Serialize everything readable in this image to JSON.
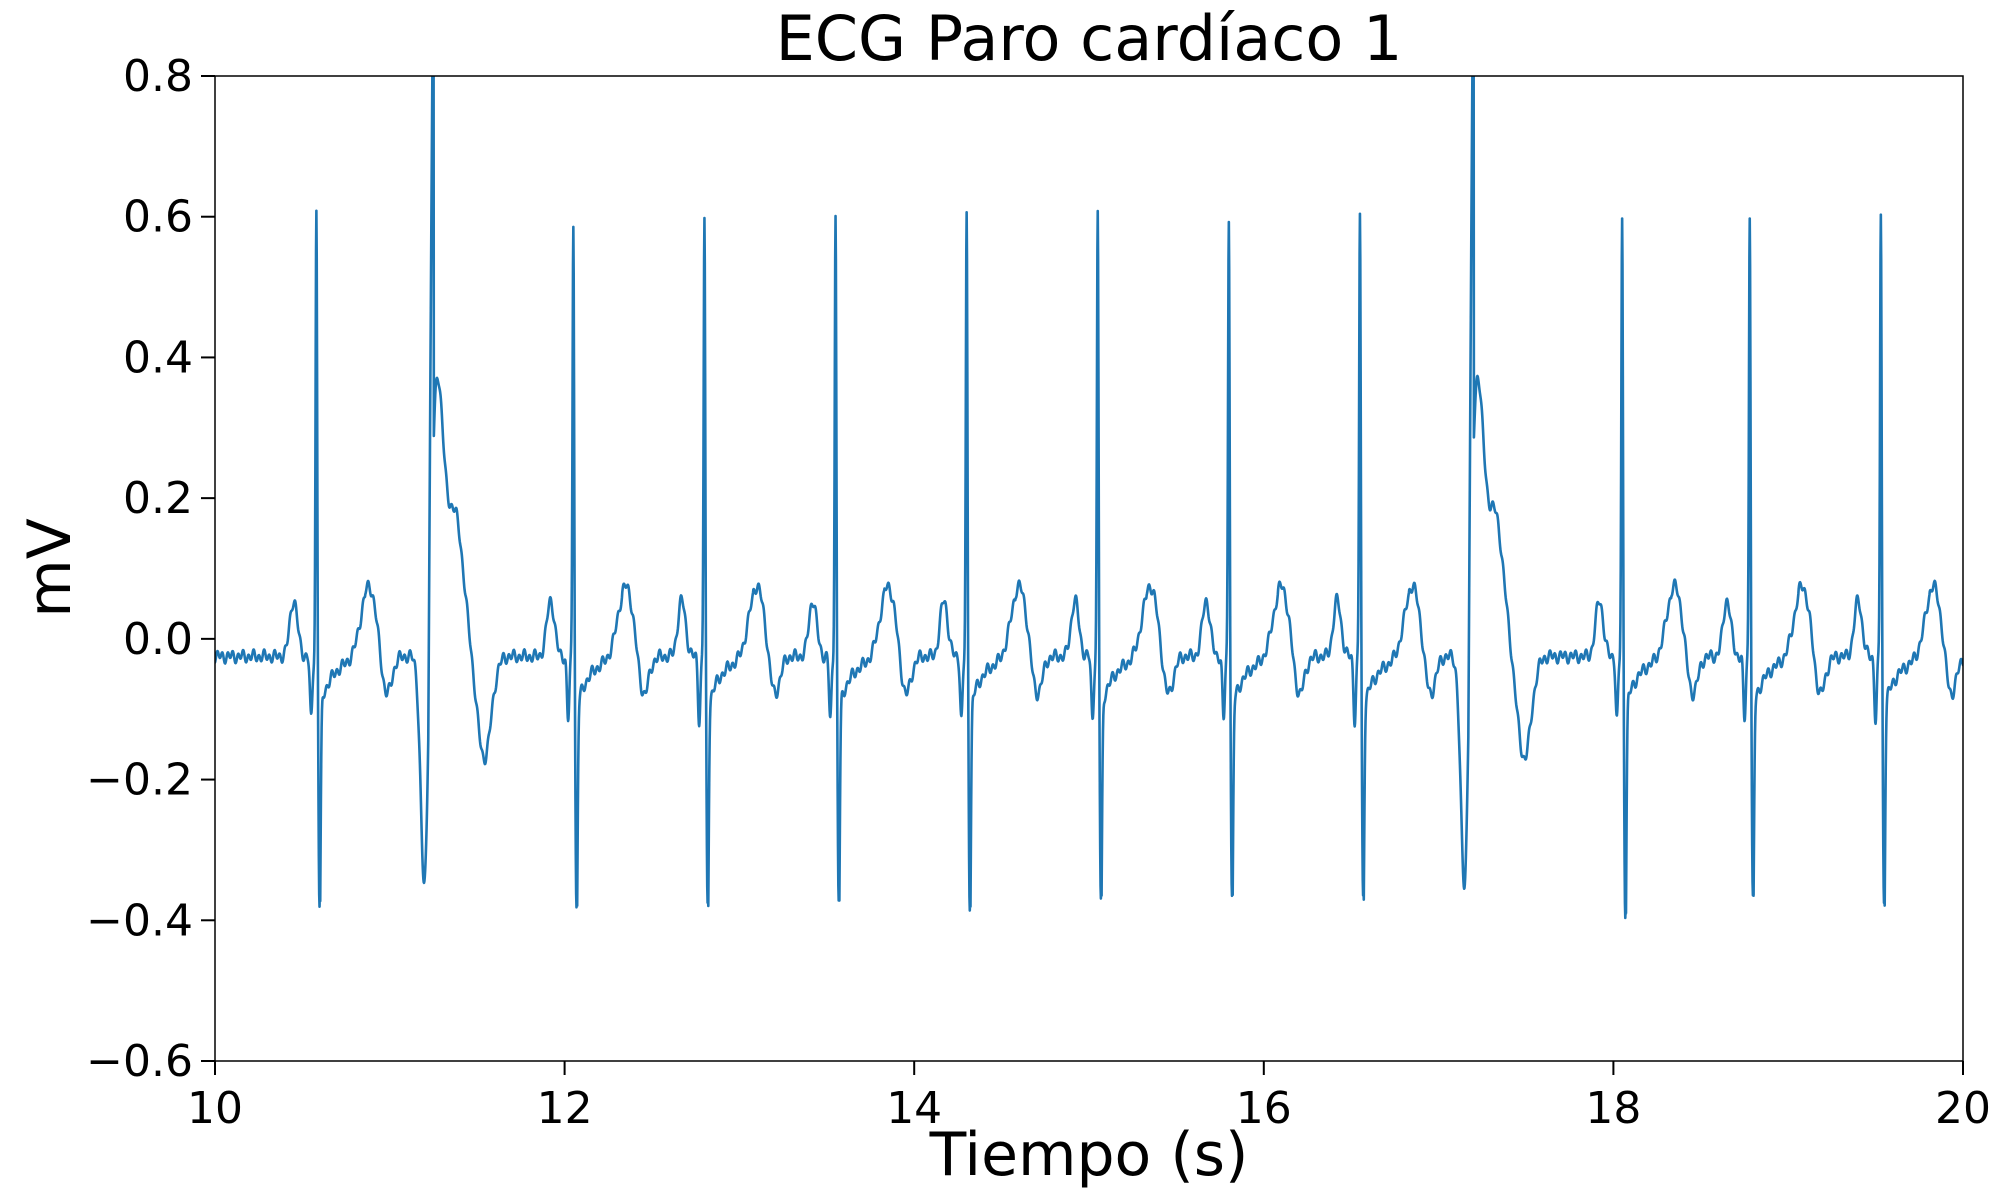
{
  "chart_data": {
    "type": "line",
    "title": "ECG Paro cardíaco 1",
    "xlabel": "Tiempo (s)",
    "ylabel": "mV",
    "xlim": [
      10,
      20
    ],
    "ylim": [
      -0.6,
      0.8
    ],
    "x_ticks": [
      10,
      12,
      14,
      16,
      18,
      20
    ],
    "y_ticks": [
      -0.6,
      -0.4,
      -0.2,
      0.0,
      0.2,
      0.4,
      0.6,
      0.8
    ],
    "x_tick_labels": [
      "10",
      "12",
      "14",
      "16",
      "18",
      "20"
    ],
    "y_tick_labels": [
      "−0.6",
      "−0.4",
      "−0.2",
      "0.0",
      "0.2",
      "0.4",
      "0.6",
      "0.8"
    ],
    "grid": false,
    "legend": "none",
    "line_color": "#1f77b4",
    "series": [
      {
        "normal_beats": [
          {
            "r": 10.58,
            "peak": 0.605,
            "s": -0.375
          },
          {
            "r": 12.05,
            "peak": 0.592,
            "s": -0.38
          },
          {
            "r": 12.8,
            "peak": 0.598,
            "s": -0.372
          },
          {
            "r": 13.55,
            "peak": 0.602,
            "s": -0.365
          },
          {
            "r": 14.3,
            "peak": 0.598,
            "s": -0.372
          },
          {
            "r": 15.05,
            "peak": 0.602,
            "s": -0.368
          },
          {
            "r": 15.8,
            "peak": 0.598,
            "s": -0.365
          },
          {
            "r": 16.55,
            "peak": 0.605,
            "s": -0.362
          },
          {
            "r": 18.05,
            "peak": 0.592,
            "s": -0.382
          },
          {
            "r": 18.78,
            "peak": 0.605,
            "s": -0.368
          },
          {
            "r": 19.53,
            "peak": 0.605,
            "s": -0.368
          }
        ],
        "ectopic_beats": [
          {
            "start": 11.1,
            "trough": -0.39,
            "peak_time": 11.25,
            "peak": 0.37,
            "end_trough": -0.175
          },
          {
            "start": 17.05,
            "trough": -0.39,
            "peak_time": 17.2,
            "peak": 0.37,
            "end_trough": -0.175
          }
        ]
      }
    ]
  }
}
